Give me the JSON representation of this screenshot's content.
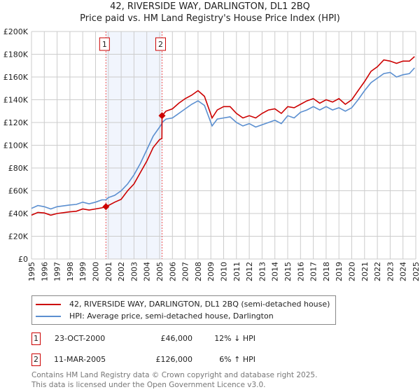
{
  "header": {
    "title": "42, RIVERSIDE WAY, DARLINGTON, DL1 2BQ",
    "subtitle": "Price paid vs. HM Land Registry's House Price Index (HPI)"
  },
  "chart_data": {
    "type": "line",
    "title": "42, RIVERSIDE WAY, DARLINGTON, DL1 2BQ",
    "subtitle": "Price paid vs. HM Land Registry's House Price Index (HPI)",
    "xlim": [
      1995,
      2025
    ],
    "ylim": [
      0,
      200000
    ],
    "x_ticks": [
      "1995",
      "1996",
      "1997",
      "1998",
      "1999",
      "2000",
      "2001",
      "2002",
      "2003",
      "2004",
      "2005",
      "2006",
      "2007",
      "2008",
      "2009",
      "2010",
      "2011",
      "2012",
      "2013",
      "2014",
      "2015",
      "2016",
      "2017",
      "2018",
      "2019",
      "2020",
      "2021",
      "2022",
      "2023",
      "2024",
      "2025"
    ],
    "y_ticks": [
      {
        "value": 0,
        "label": "£0"
      },
      {
        "value": 20000,
        "label": "£20K"
      },
      {
        "value": 40000,
        "label": "£40K"
      },
      {
        "value": 60000,
        "label": "£60K"
      },
      {
        "value": 80000,
        "label": "£80K"
      },
      {
        "value": 100000,
        "label": "£100K"
      },
      {
        "value": 120000,
        "label": "£120K"
      },
      {
        "value": 140000,
        "label": "£140K"
      },
      {
        "value": 160000,
        "label": "£160K"
      },
      {
        "value": 180000,
        "label": "£180K"
      },
      {
        "value": 200000,
        "label": "£200K"
      }
    ],
    "grid": true,
    "x": [
      1995,
      1995.5,
      1996,
      1996.5,
      1997,
      1998,
      1998.5,
      1999,
      1999.5,
      2000,
      2000.5,
      2000.81,
      2001,
      2001.5,
      2002,
      2002.5,
      2003,
      2003.5,
      2004,
      2004.5,
      2005,
      2005.18,
      2005.19,
      2005.5,
      2006,
      2006.5,
      2007,
      2007.5,
      2008,
      2008.5,
      2009.1,
      2009.5,
      2010,
      2010.5,
      2011,
      2011.5,
      2012,
      2012.5,
      2013,
      2013.5,
      2014,
      2014.5,
      2015,
      2015.5,
      2016,
      2016.5,
      2017,
      2017.5,
      2018,
      2018.5,
      2019,
      2019.5,
      2020,
      2020.5,
      2021,
      2021.5,
      2022,
      2022.5,
      2023,
      2023.5,
      2024,
      2024.5,
      2024.9
    ],
    "series": [
      {
        "name": "42, RIVERSIDE WAY, DARLINGTON, DL1 2BQ (semi-detached house)",
        "color": "#cc0000",
        "values": [
          38500,
          41000,
          40500,
          38500,
          40000,
          41500,
          42000,
          44000,
          43000,
          44000,
          45000,
          46000,
          47000,
          50000,
          52500,
          60000,
          66000,
          76000,
          86000,
          98000,
          105000,
          106000,
          126000,
          130000,
          132000,
          137000,
          141000,
          144000,
          148000,
          143000,
          124000,
          131000,
          134000,
          134000,
          128000,
          124000,
          126000,
          124000,
          128000,
          131000,
          132000,
          128000,
          134000,
          133000,
          136000,
          139000,
          141000,
          137000,
          140000,
          138000,
          141000,
          136000,
          140000,
          148000,
          156000,
          165000,
          169000,
          175000,
          174000,
          172000,
          174000,
          174000,
          178000
        ]
      },
      {
        "name": "HPI: Average price, semi-detached house, Darlington",
        "color": "#5b8fd0",
        "values": [
          44500,
          47000,
          46000,
          44000,
          46000,
          47500,
          48000,
          50000,
          48500,
          50000,
          52000,
          52000,
          54000,
          56000,
          60000,
          66000,
          74000,
          84000,
          96000,
          108000,
          116000,
          119000,
          120000,
          123000,
          124000,
          128000,
          132000,
          136000,
          139000,
          135000,
          117000,
          123000,
          124000,
          125000,
          120000,
          117000,
          119000,
          116000,
          118000,
          120000,
          122000,
          119000,
          126000,
          124000,
          129000,
          131000,
          134000,
          131000,
          134000,
          131000,
          133000,
          130000,
          133000,
          140000,
          148000,
          155000,
          159000,
          163000,
          164000,
          160000,
          162000,
          163000,
          168000
        ]
      }
    ],
    "sales": [
      {
        "label": "1",
        "x": 2000.81,
        "value": 46000,
        "date": "23-OCT-2000",
        "price": "£46,000",
        "hpi": "12% ↓ HPI"
      },
      {
        "label": "2",
        "x": 2005.19,
        "value": 126000,
        "date": "11-MAR-2005",
        "price": "£126,000",
        "hpi": "6% ↑ HPI"
      }
    ],
    "legend_placement": "below"
  },
  "legend": {
    "items": [
      {
        "label": "42, RIVERSIDE WAY, DARLINGTON, DL1 2BQ (semi-detached house)",
        "color": "#cc0000"
      },
      {
        "label": "HPI: Average price, semi-detached house, Darlington",
        "color": "#5b8fd0"
      }
    ]
  },
  "footer": {
    "line1": "Contains HM Land Registry data © Crown copyright and database right 2025.",
    "line2": "This data is licensed under the Open Government Licence v3.0."
  }
}
